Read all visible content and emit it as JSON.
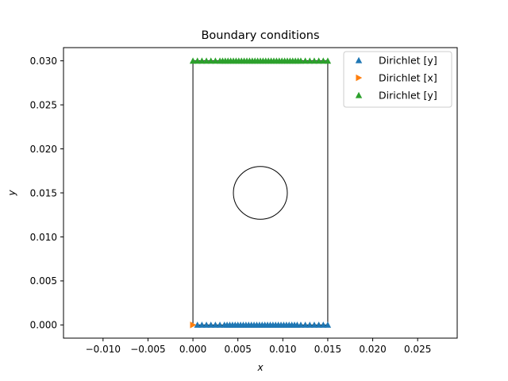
{
  "chart_data": {
    "type": "scatter",
    "title": "Boundary conditions",
    "xlabel": "x",
    "ylabel": "y",
    "xlim": [
      -0.0144,
      0.0294
    ],
    "ylim": [
      -0.0015,
      0.0315
    ],
    "xticks": [
      -0.01,
      -0.005,
      0.0,
      0.005,
      0.01,
      0.015,
      0.02,
      0.025
    ],
    "xtick_labels": [
      "−0.010",
      "−0.005",
      "0.000",
      "0.005",
      "0.010",
      "0.015",
      "0.020",
      "0.025"
    ],
    "yticks": [
      0.0,
      0.005,
      0.01,
      0.015,
      0.02,
      0.025,
      0.03
    ],
    "ytick_labels": [
      "0.000",
      "0.005",
      "0.010",
      "0.015",
      "0.020",
      "0.025",
      "0.030"
    ],
    "grid": false,
    "legend_position": "top-right",
    "geometry": {
      "rectangle": {
        "x": [
          0.0,
          0.015
        ],
        "y": [
          0.0,
          0.03
        ]
      },
      "circle": {
        "center": [
          0.0075,
          0.015
        ],
        "radius": 0.003
      }
    },
    "series": [
      {
        "name": "Dirichlet  [y]",
        "marker": "triangle-up",
        "color": "#1f77b4",
        "x": [
          0.0005,
          0.001,
          0.0015,
          0.002,
          0.0025,
          0.003,
          0.0035,
          0.0038,
          0.0041,
          0.0044,
          0.0047,
          0.005,
          0.0053,
          0.0056,
          0.0059,
          0.0062,
          0.0065,
          0.0068,
          0.0071,
          0.0074,
          0.0077,
          0.008,
          0.0083,
          0.0086,
          0.0089,
          0.0092,
          0.0095,
          0.0098,
          0.0101,
          0.0104,
          0.0107,
          0.011,
          0.0113,
          0.0116,
          0.012,
          0.0125,
          0.013,
          0.0135,
          0.014,
          0.0145,
          0.015
        ],
        "y": [
          0.0,
          0.0,
          0.0,
          0.0,
          0.0,
          0.0,
          0.0,
          0.0,
          0.0,
          0.0,
          0.0,
          0.0,
          0.0,
          0.0,
          0.0,
          0.0,
          0.0,
          0.0,
          0.0,
          0.0,
          0.0,
          0.0,
          0.0,
          0.0,
          0.0,
          0.0,
          0.0,
          0.0,
          0.0,
          0.0,
          0.0,
          0.0,
          0.0,
          0.0,
          0.0,
          0.0,
          0.0,
          0.0,
          0.0,
          0.0,
          0.0
        ]
      },
      {
        "name": "Dirichlet  [x]",
        "marker": "triangle-right",
        "color": "#ff7f0e",
        "x": [
          0.0
        ],
        "y": [
          0.0
        ]
      },
      {
        "name": "Dirichlet  [y]",
        "marker": "triangle-up",
        "color": "#2ca02c",
        "x": [
          0.0,
          0.0005,
          0.001,
          0.0015,
          0.002,
          0.0025,
          0.003,
          0.0033,
          0.0036,
          0.0039,
          0.0042,
          0.0045,
          0.0048,
          0.0051,
          0.0054,
          0.0057,
          0.006,
          0.0063,
          0.0066,
          0.0069,
          0.0072,
          0.0075,
          0.0078,
          0.0081,
          0.0084,
          0.0087,
          0.009,
          0.0093,
          0.0096,
          0.0099,
          0.0102,
          0.0105,
          0.0108,
          0.0111,
          0.0114,
          0.0117,
          0.012,
          0.0125,
          0.013,
          0.0135,
          0.014,
          0.0145,
          0.015
        ],
        "y": [
          0.03,
          0.03,
          0.03,
          0.03,
          0.03,
          0.03,
          0.03,
          0.03,
          0.03,
          0.03,
          0.03,
          0.03,
          0.03,
          0.03,
          0.03,
          0.03,
          0.03,
          0.03,
          0.03,
          0.03,
          0.03,
          0.03,
          0.03,
          0.03,
          0.03,
          0.03,
          0.03,
          0.03,
          0.03,
          0.03,
          0.03,
          0.03,
          0.03,
          0.03,
          0.03,
          0.03,
          0.03,
          0.03,
          0.03,
          0.03,
          0.03,
          0.03,
          0.03
        ]
      }
    ]
  }
}
